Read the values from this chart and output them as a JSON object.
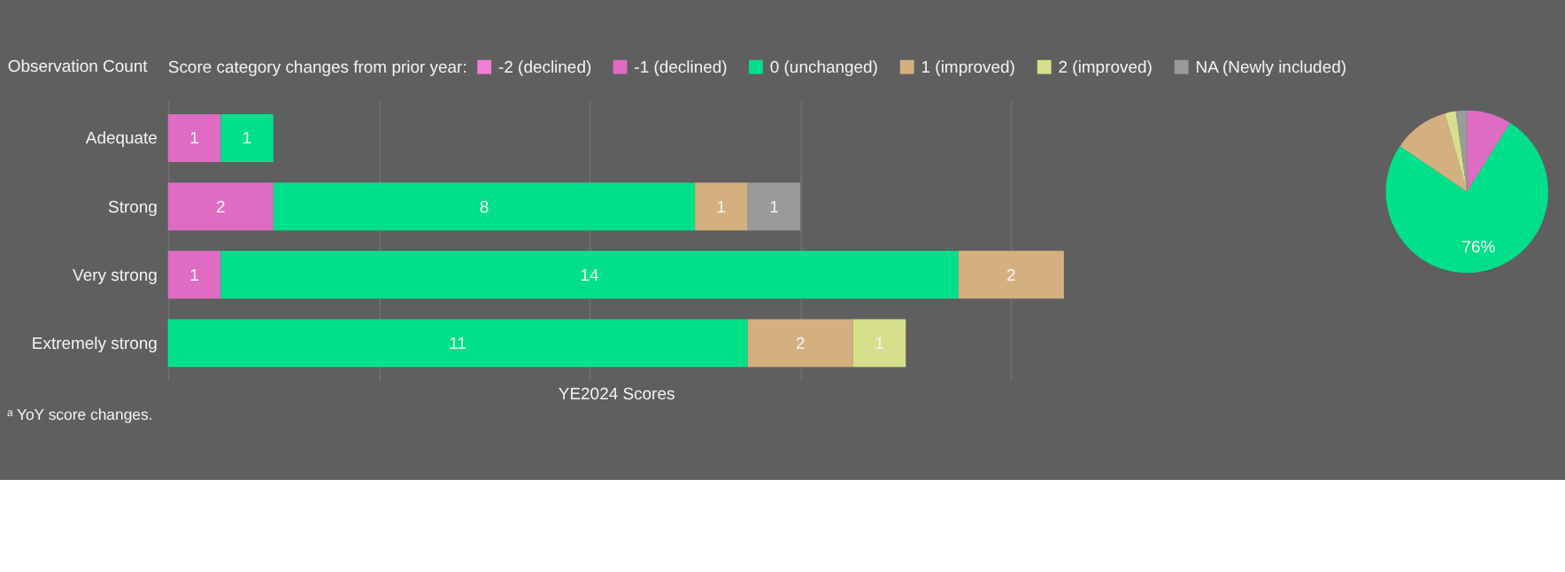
{
  "chart_data": [
    {
      "type": "bar",
      "orientation": "horizontal",
      "stacked": true,
      "data_labels": true,
      "legend_title": "Score category changes from prior year:",
      "legend": "top",
      "ylabel": "Observation Count",
      "xlabel": "YE2024 Scores",
      "annotations": [
        "ᵃ YoY score changes."
      ],
      "categories": [
        "Adequate",
        "Strong",
        "Very strong",
        "Extremely strong"
      ],
      "xlim": [
        0,
        17
      ],
      "xticks": [
        {
          "value": 0,
          "label": null
        },
        {
          "value": 4,
          "label": null
        },
        {
          "value": 8,
          "label": null
        },
        {
          "value": 12,
          "label": null
        },
        {
          "value": 16,
          "label": null
        }
      ],
      "grid": "x",
      "tick_labels": "y",
      "series": [
        {
          "name": "-2 (declined)",
          "color": "#f07fd6",
          "values": [
            null,
            null,
            null,
            null
          ]
        },
        {
          "name": "-1 (declined)",
          "color": "#de6cc2",
          "values": [
            1,
            2,
            1,
            null
          ]
        },
        {
          "name": "0 (unchanged)",
          "color": "#00e08a",
          "values": [
            1,
            8,
            14,
            11
          ]
        },
        {
          "name": "1 (improved)",
          "color": "#d4b080",
          "values": [
            null,
            1,
            2,
            2
          ]
        },
        {
          "name": "2 (improved)",
          "color": "#d6e08c",
          "values": [
            null,
            null,
            null,
            1
          ]
        },
        {
          "name": "NA (Newly included)",
          "color": "#9a9a9a",
          "values": [
            null,
            1,
            null,
            null
          ]
        }
      ]
    },
    {
      "type": "pie",
      "categories": [
        null,
        null,
        null,
        null,
        null
      ],
      "values": [
        8.9,
        75.6,
        11.1,
        2.2,
        2.2
      ],
      "colors": [
        "#de6cc2",
        "#00e08a",
        "#d4b080",
        "#d6e08c",
        "#9a9a9a"
      ],
      "value_labels": [
        null,
        "76%",
        null,
        null,
        null
      ]
    }
  ]
}
